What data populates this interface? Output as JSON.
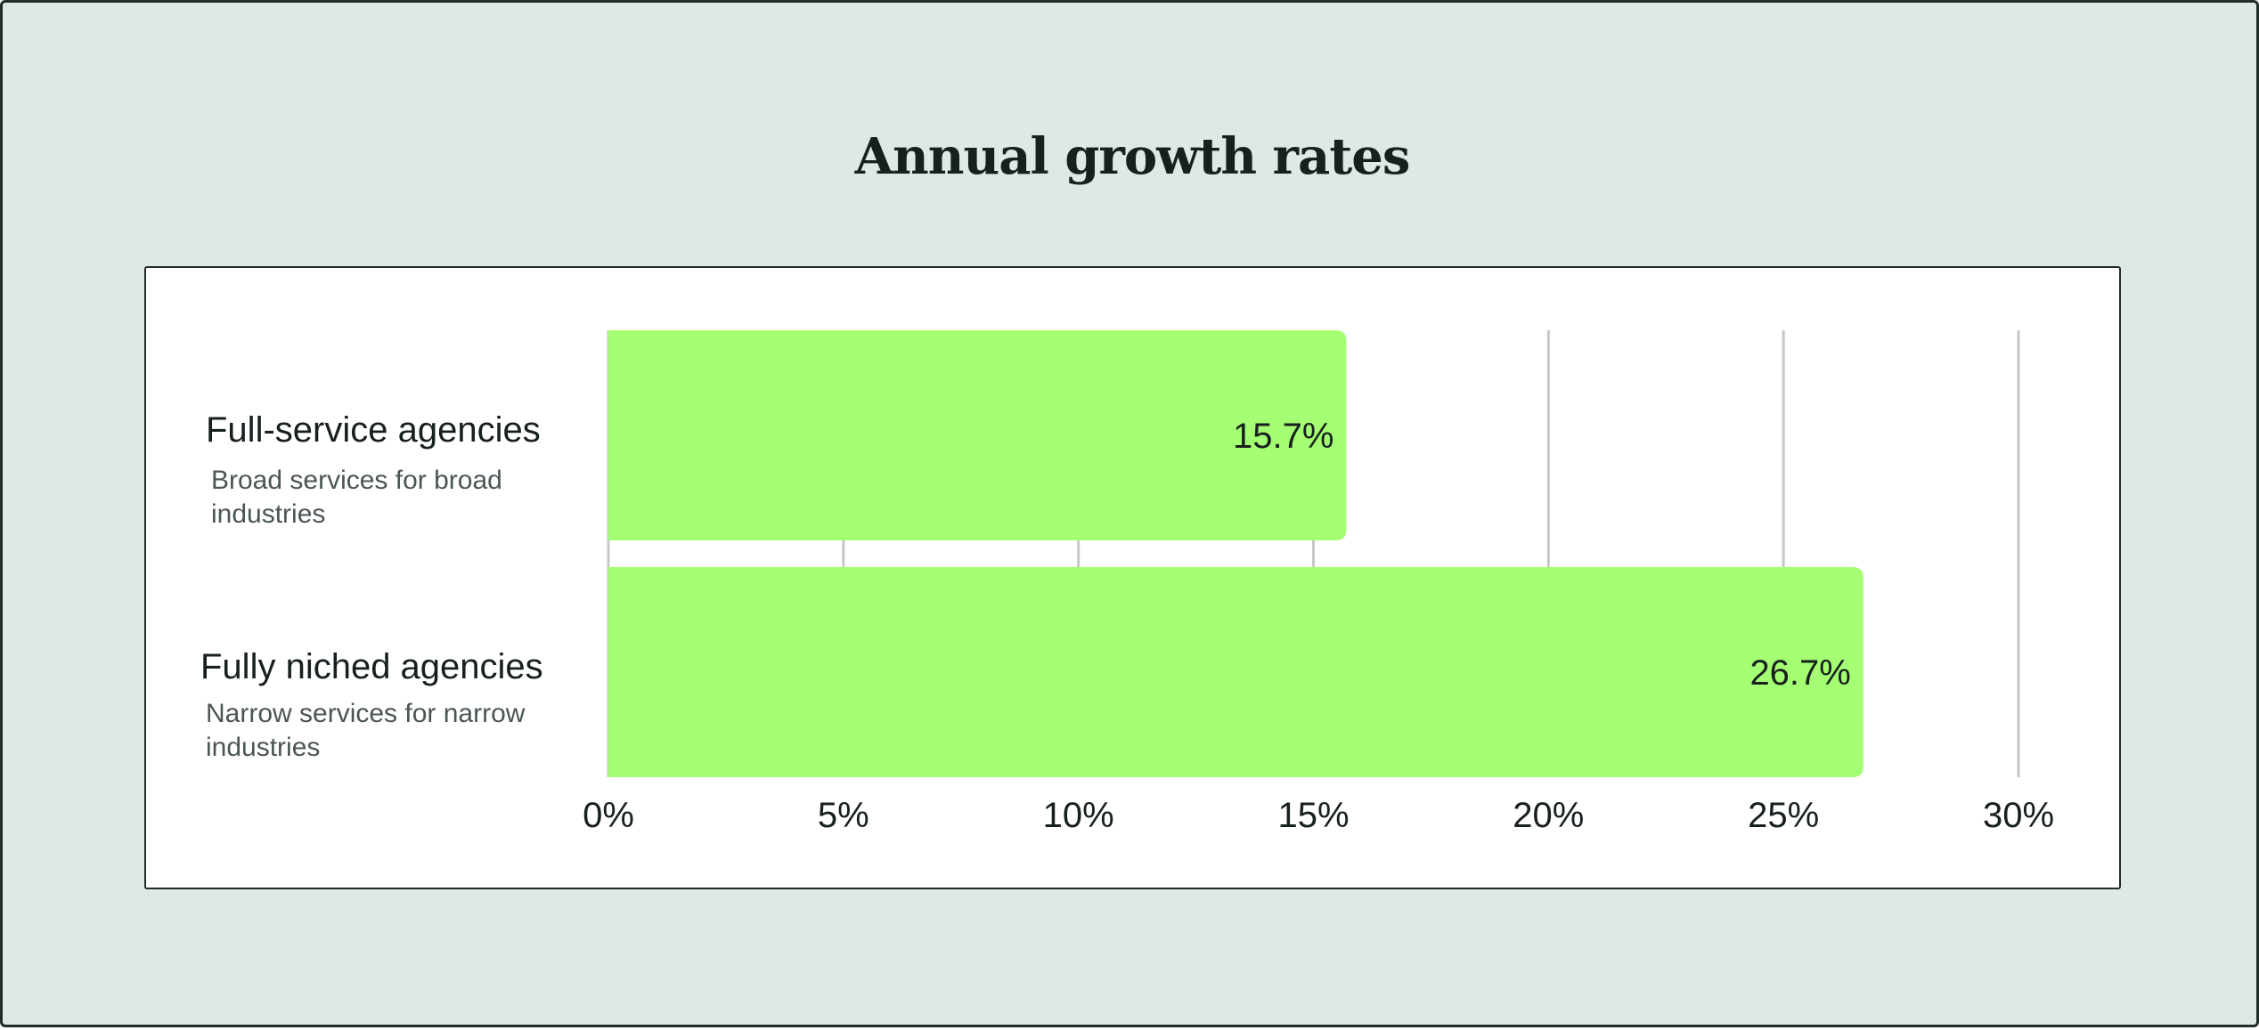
{
  "title": "Annual growth rates",
  "chart_data": {
    "type": "bar",
    "orientation": "horizontal",
    "title": "Annual growth rates",
    "categories": [
      "Full-service agencies",
      "Fully niched agencies"
    ],
    "subtitles": [
      "Broad services for broad industries",
      "Narrow services for narrow industries"
    ],
    "values": [
      15.7,
      26.7
    ],
    "value_labels": [
      "15.7%",
      "26.7%"
    ],
    "xlim": [
      0,
      30
    ],
    "xticks": [
      0,
      5,
      10,
      15,
      20,
      25,
      30
    ],
    "xtick_labels": [
      "0%",
      "5%",
      "10%",
      "15%",
      "20%",
      "25%",
      "30%"
    ],
    "grid": true,
    "bar_color": "#a5ff72",
    "grid_color": "#c4c9c8"
  }
}
